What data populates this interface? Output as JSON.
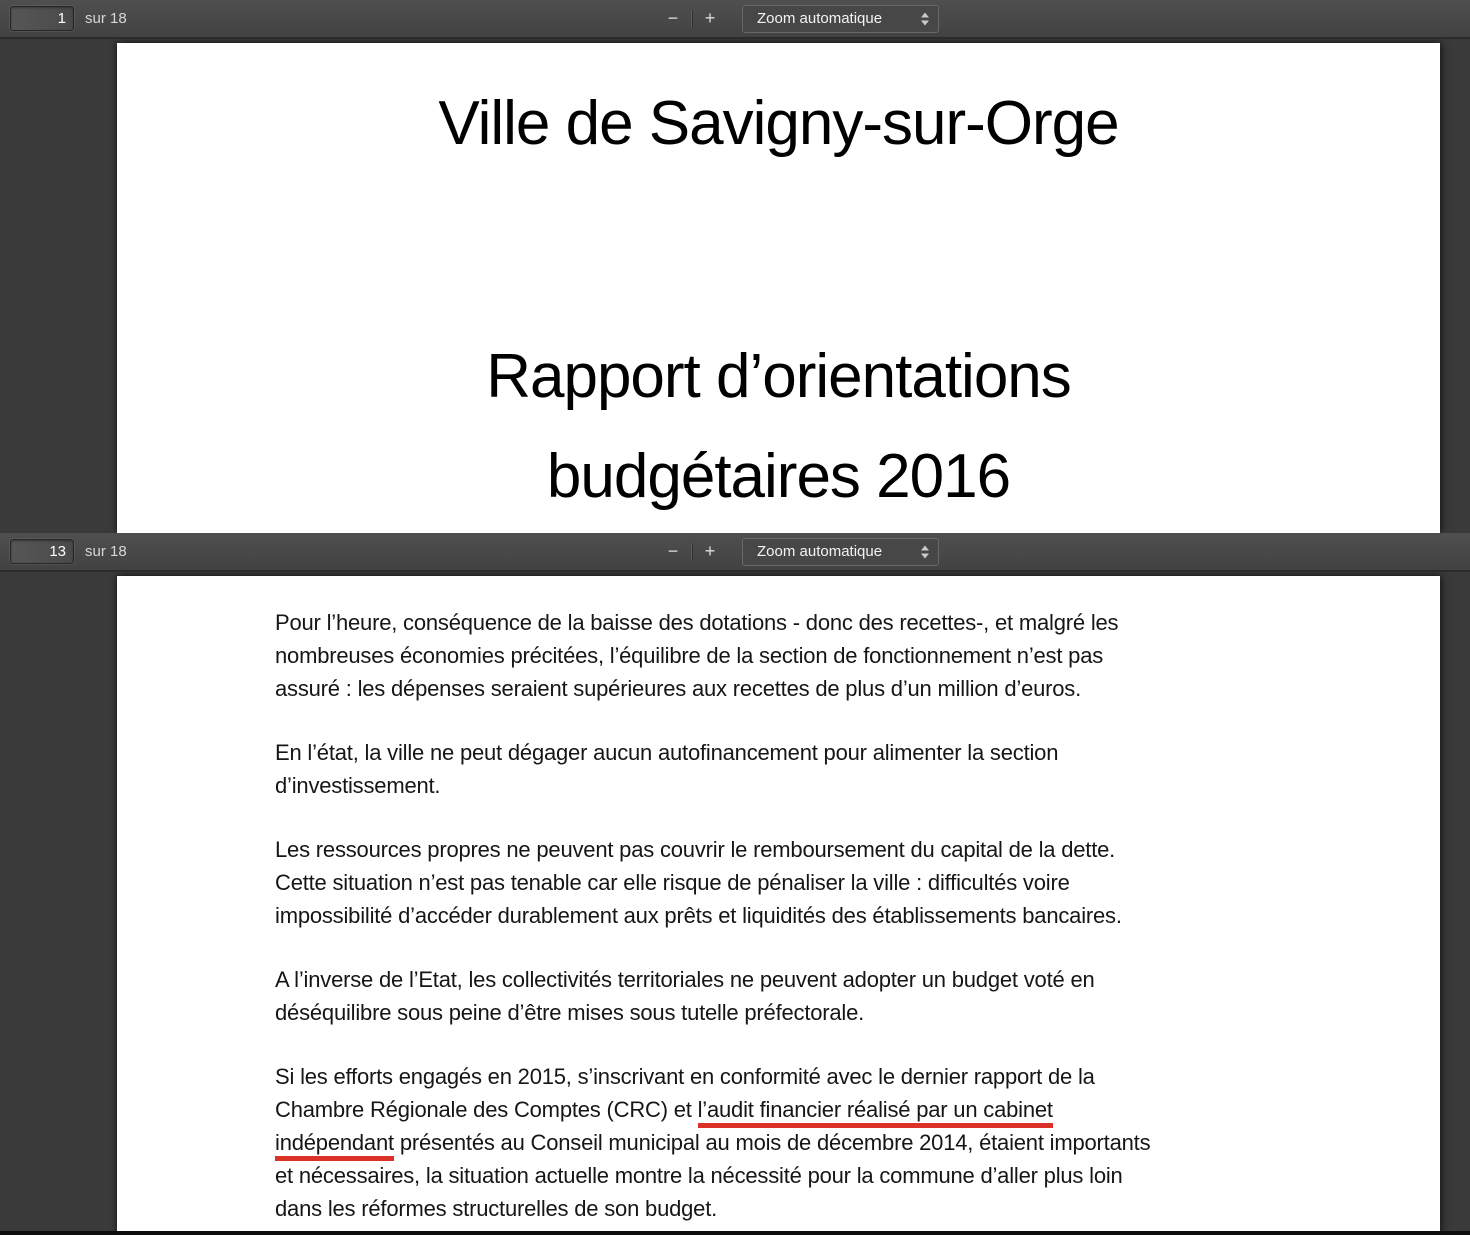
{
  "colors": {
    "underline_red": "#dc3127",
    "toolbar_bg": "#474747",
    "viewer_bg": "#3a3a3a"
  },
  "viewer_top": {
    "page_number": "1",
    "page_count_label": "sur 18",
    "zoom_out_label": "−",
    "zoom_in_label": "+",
    "zoom_select_value": "Zoom automatique",
    "page1": {
      "title_line1": "Ville de Savigny-sur-Orge",
      "title_line2": "Rapport d’orientations",
      "title_line3": "budgétaires 2016"
    }
  },
  "viewer_bottom": {
    "page_number": "13",
    "page_count_label": "sur 18",
    "zoom_out_label": "−",
    "zoom_in_label": "+",
    "zoom_select_value": "Zoom automatique",
    "page13": {
      "p1": {
        "l1": "Pour l’heure, conséquence de la baisse des dotations - donc des recettes-, et malgré les",
        "l2": "nombreuses économies précitées, l’équilibre de la section de fonctionnement n’est pas",
        "l3": "assuré : les dépenses seraient supérieures aux recettes de plus d’un million d’euros."
      },
      "p2": {
        "l1": "En l’état, la ville ne peut dégager aucun autofinancement pour alimenter la section",
        "l2": "d’investissement."
      },
      "p3": {
        "l1": "Les ressources propres ne peuvent pas couvrir le remboursement du capital de la dette.",
        "l2": "Cette situation n’est pas tenable car elle risque de pénaliser la ville : difficultés voire",
        "l3": "impossibilité d’accéder durablement aux prêts et liquidités des établissements bancaires."
      },
      "p4": {
        "l1": "A l’inverse de l’Etat, les collectivités territoriales ne peuvent adopter un budget voté en",
        "l2": "déséquilibre sous peine d’être mises sous tutelle préfectorale."
      },
      "p5": {
        "l1": "Si les efforts engagés en 2015, s’inscrivant en conformité avec le dernier rapport de la",
        "l2_pre": "Chambre Régionale des Comptes (CRC) et ",
        "l2_underlined": "l’audit financier réalisé par un cabinet",
        "l3_underlined": "indépendant",
        "l3_post": " présentés au Conseil municipal au mois de décembre 2014, étaient importants",
        "l4": "et nécessaires, la situation actuelle montre la nécessité pour la commune d’aller plus loin",
        "l5": "dans les réformes structurelles de son budget."
      }
    }
  }
}
